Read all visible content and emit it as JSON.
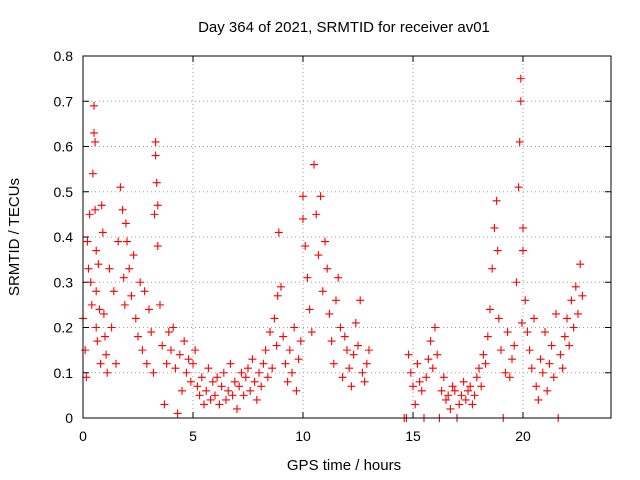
{
  "chart_data": {
    "type": "scatter",
    "title": "Day 364 of 2021, SRMTID for receiver av01",
    "xlabel": "GPS time / hours",
    "ylabel": "SRMTID / TECUs",
    "xlim": [
      0,
      24
    ],
    "ylim": [
      0,
      0.8
    ],
    "xticks": [
      0,
      5,
      10,
      15,
      20
    ],
    "xtick_labels": [
      "0",
      "5",
      "10",
      "15",
      "20"
    ],
    "yticks": [
      0,
      0.1,
      0.2,
      0.3,
      0.4,
      0.5,
      0.6,
      0.7,
      0.8
    ],
    "ytick_labels": [
      "0",
      "0.1",
      "0.2",
      "0.3",
      "0.4",
      "0.5",
      "0.6",
      "0.7",
      "0.8"
    ],
    "grid": true,
    "marker": "plus",
    "color": "#ff0000",
    "series": [
      {
        "name": "SRMTID",
        "x": [
          0.0,
          0.1,
          0.15,
          0.2,
          0.25,
          0.3,
          0.35,
          0.4,
          0.45,
          0.5,
          0.5,
          0.55,
          0.55,
          0.6,
          0.6,
          0.6,
          0.65,
          0.7,
          0.75,
          0.8,
          0.85,
          0.9,
          0.95,
          1.0,
          1.05,
          1.1,
          1.2,
          1.3,
          1.4,
          1.5,
          1.6,
          1.7,
          1.8,
          1.85,
          1.9,
          1.95,
          2.0,
          2.1,
          2.2,
          2.3,
          2.4,
          2.5,
          2.6,
          2.7,
          2.8,
          2.9,
          3.0,
          3.1,
          3.2,
          3.25,
          3.3,
          3.3,
          3.35,
          3.4,
          3.4,
          3.5,
          3.6,
          3.7,
          3.8,
          3.9,
          4.0,
          4.1,
          4.2,
          4.3,
          4.4,
          4.5,
          4.6,
          4.7,
          4.8,
          4.9,
          5.0,
          5.1,
          5.2,
          5.3,
          5.4,
          5.5,
          5.6,
          5.7,
          5.8,
          5.9,
          6.0,
          6.1,
          6.2,
          6.3,
          6.4,
          6.5,
          6.6,
          6.7,
          6.8,
          6.9,
          7.0,
          7.1,
          7.2,
          7.3,
          7.4,
          7.5,
          7.6,
          7.7,
          7.8,
          7.9,
          8.0,
          8.1,
          8.2,
          8.3,
          8.4,
          8.5,
          8.6,
          8.7,
          8.8,
          8.85,
          8.9,
          9.0,
          9.1,
          9.2,
          9.3,
          9.4,
          9.5,
          9.6,
          9.7,
          9.8,
          9.9,
          10.0,
          10.0,
          10.1,
          10.2,
          10.3,
          10.4,
          10.5,
          10.6,
          10.7,
          10.8,
          10.9,
          11.0,
          11.1,
          11.2,
          11.3,
          11.4,
          11.5,
          11.6,
          11.7,
          11.8,
          11.9,
          12.0,
          12.1,
          12.2,
          12.3,
          12.4,
          12.5,
          12.6,
          12.7,
          12.8,
          12.9,
          13.0,
          14.6,
          14.7,
          14.8,
          14.9,
          15.0,
          15.1,
          15.2,
          15.3,
          15.4,
          15.5,
          15.6,
          15.7,
          15.8,
          15.9,
          16.0,
          16.1,
          16.2,
          16.3,
          16.4,
          16.5,
          16.6,
          16.7,
          16.8,
          16.9,
          17.0,
          17.1,
          17.2,
          17.3,
          17.4,
          17.5,
          17.6,
          17.7,
          17.8,
          17.9,
          18.0,
          18.1,
          18.2,
          18.3,
          18.4,
          18.5,
          18.6,
          18.7,
          18.8,
          18.85,
          18.9,
          19.0,
          19.1,
          19.2,
          19.3,
          19.4,
          19.5,
          19.6,
          19.7,
          19.8,
          19.85,
          19.9,
          19.9,
          19.95,
          20.0,
          20.0,
          20.1,
          20.2,
          20.3,
          20.4,
          20.5,
          20.6,
          20.7,
          20.8,
          20.9,
          21.0,
          21.1,
          21.2,
          21.3,
          21.4,
          21.5,
          21.6,
          21.7,
          21.8,
          21.9,
          22.0,
          22.1,
          22.2,
          22.3,
          22.4,
          22.5,
          22.6,
          22.7
        ],
        "y": [
          0.22,
          0.15,
          0.09,
          0.39,
          0.33,
          0.45,
          0.3,
          0.25,
          0.54,
          0.63,
          0.69,
          0.61,
          0.46,
          0.2,
          0.37,
          0.28,
          0.17,
          0.34,
          0.24,
          0.12,
          0.47,
          0.41,
          0.23,
          0.18,
          0.14,
          0.1,
          0.33,
          0.2,
          0.28,
          0.12,
          0.39,
          0.51,
          0.46,
          0.31,
          0.25,
          0.43,
          0.39,
          0.33,
          0.27,
          0.36,
          0.22,
          0.18,
          0.3,
          0.15,
          0.28,
          0.12,
          0.24,
          0.19,
          0.1,
          0.45,
          0.58,
          0.61,
          0.52,
          0.47,
          0.38,
          0.25,
          0.16,
          0.03,
          0.12,
          0.19,
          0.15,
          0.2,
          0.11,
          0.01,
          0.14,
          0.06,
          0.17,
          0.1,
          0.13,
          0.08,
          0.12,
          0.15,
          0.07,
          0.05,
          0.09,
          0.03,
          0.06,
          0.11,
          0.04,
          0.08,
          0.05,
          0.09,
          0.03,
          0.07,
          0.1,
          0.04,
          0.06,
          0.12,
          0.05,
          0.08,
          0.02,
          0.07,
          0.1,
          0.05,
          0.09,
          0.11,
          0.06,
          0.13,
          0.08,
          0.04,
          0.1,
          0.07,
          0.12,
          0.15,
          0.09,
          0.19,
          0.11,
          0.22,
          0.16,
          0.27,
          0.41,
          0.29,
          0.18,
          0.12,
          0.08,
          0.15,
          0.1,
          0.2,
          0.06,
          0.13,
          0.17,
          0.44,
          0.49,
          0.38,
          0.31,
          0.24,
          0.19,
          0.56,
          0.45,
          0.36,
          0.49,
          0.28,
          0.39,
          0.33,
          0.23,
          0.17,
          0.12,
          0.26,
          0.31,
          0.2,
          0.09,
          0.18,
          0.15,
          0.11,
          0.07,
          0.14,
          0.21,
          0.16,
          0.26,
          0.1,
          0.08,
          0.12,
          0.15,
          0.0,
          0.0,
          0.14,
          0.1,
          0.07,
          0.03,
          0.12,
          0.08,
          0.06,
          0.0,
          0.09,
          0.13,
          0.17,
          0.11,
          0.2,
          0.14,
          0.0,
          0.06,
          0.09,
          0.04,
          0.05,
          0.02,
          0.07,
          0.06,
          0.0,
          0.03,
          0.05,
          0.08,
          0.04,
          0.06,
          0.07,
          0.03,
          0.05,
          0.09,
          0.11,
          0.07,
          0.14,
          0.12,
          0.18,
          0.24,
          0.33,
          0.42,
          0.48,
          0.37,
          0.22,
          0.15,
          0.0,
          0.1,
          0.19,
          0.09,
          0.13,
          0.16,
          0.3,
          0.51,
          0.61,
          0.7,
          0.75,
          0.21,
          0.42,
          0.37,
          0.26,
          0.19,
          0.15,
          0.11,
          0.22,
          0.07,
          0.04,
          0.13,
          0.1,
          0.19,
          0.06,
          0.12,
          0.16,
          0.09,
          0.23,
          0.0,
          0.14,
          0.11,
          0.18,
          0.22,
          0.16,
          0.26,
          0.2,
          0.29,
          0.23,
          0.34,
          0.27
        ]
      }
    ]
  }
}
